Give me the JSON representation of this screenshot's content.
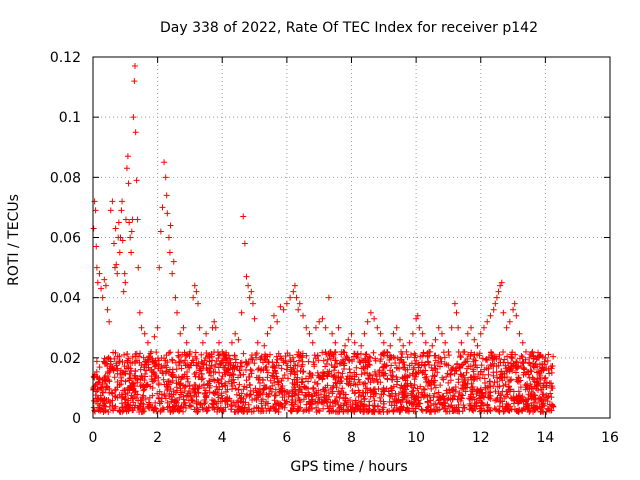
{
  "chart_data": {
    "type": "scatter",
    "title": "Day 338 of 2022, Rate Of TEC Index for receiver p142",
    "xlabel": "GPS time / hours",
    "ylabel": "ROTI / TECUs",
    "xlim": [
      0,
      16
    ],
    "ylim": [
      0,
      0.12
    ],
    "x_ticks": [
      0,
      2,
      4,
      6,
      8,
      10,
      12,
      14,
      16
    ],
    "x_tick_labels": [
      "0",
      "2",
      "4",
      "6",
      "8",
      "10",
      "12",
      "14",
      "16"
    ],
    "y_ticks": [
      0,
      0.02,
      0.04,
      0.06,
      0.08,
      0.1,
      0.12
    ],
    "y_tick_labels": [
      "0",
      "0.02",
      "0.04",
      "0.06",
      "0.08",
      "0.1",
      "0.12"
    ],
    "grid": true,
    "marker": "plus",
    "color": "#ff0000",
    "series": [
      {
        "name": "ROTI",
        "points": [
          [
            0.02,
            0.063
          ],
          [
            0.05,
            0.072
          ],
          [
            0.08,
            0.069
          ],
          [
            0.1,
            0.057
          ],
          [
            0.12,
            0.05
          ],
          [
            0.15,
            0.045
          ],
          [
            0.2,
            0.048
          ],
          [
            0.25,
            0.043
          ],
          [
            0.3,
            0.04
          ],
          [
            0.35,
            0.046
          ],
          [
            0.4,
            0.044
          ],
          [
            0.45,
            0.036
          ],
          [
            0.5,
            0.032
          ],
          [
            0.55,
            0.069
          ],
          [
            0.6,
            0.072
          ],
          [
            0.65,
            0.058
          ],
          [
            0.68,
            0.05
          ],
          [
            0.7,
            0.063
          ],
          [
            0.72,
            0.051
          ],
          [
            0.75,
            0.048
          ],
          [
            0.78,
            0.06
          ],
          [
            0.8,
            0.065
          ],
          [
            0.83,
            0.055
          ],
          [
            0.85,
            0.06
          ],
          [
            0.88,
            0.069
          ],
          [
            0.9,
            0.072
          ],
          [
            0.92,
            0.059
          ],
          [
            0.95,
            0.042
          ],
          [
            0.98,
            0.048
          ],
          [
            1.0,
            0.045
          ],
          [
            1.02,
            0.066
          ],
          [
            1.05,
            0.083
          ],
          [
            1.08,
            0.087
          ],
          [
            1.1,
            0.078
          ],
          [
            1.12,
            0.065
          ],
          [
            1.15,
            0.06
          ],
          [
            1.18,
            0.055
          ],
          [
            1.2,
            0.062
          ],
          [
            1.22,
            0.066
          ],
          [
            1.25,
            0.1
          ],
          [
            1.28,
            0.112
          ],
          [
            1.3,
            0.117
          ],
          [
            1.32,
            0.095
          ],
          [
            1.35,
            0.079
          ],
          [
            1.38,
            0.066
          ],
          [
            1.4,
            0.05
          ],
          [
            1.45,
            0.035
          ],
          [
            1.5,
            0.03
          ],
          [
            1.6,
            0.028
          ],
          [
            1.7,
            0.025
          ],
          [
            1.8,
            0.022
          ],
          [
            1.9,
            0.027
          ],
          [
            2.0,
            0.03
          ],
          [
            2.05,
            0.05
          ],
          [
            2.1,
            0.062
          ],
          [
            2.15,
            0.07
          ],
          [
            2.2,
            0.085
          ],
          [
            2.25,
            0.08
          ],
          [
            2.28,
            0.074
          ],
          [
            2.3,
            0.068
          ],
          [
            2.35,
            0.06
          ],
          [
            2.38,
            0.055
          ],
          [
            2.4,
            0.064
          ],
          [
            2.45,
            0.048
          ],
          [
            2.5,
            0.052
          ],
          [
            2.55,
            0.04
          ],
          [
            2.6,
            0.035
          ],
          [
            2.7,
            0.028
          ],
          [
            2.8,
            0.03
          ],
          [
            2.9,
            0.025
          ],
          [
            3.0,
            0.022
          ],
          [
            3.1,
            0.04
          ],
          [
            3.15,
            0.044
          ],
          [
            3.2,
            0.042
          ],
          [
            3.25,
            0.038
          ],
          [
            3.3,
            0.03
          ],
          [
            3.4,
            0.025
          ],
          [
            3.5,
            0.028
          ],
          [
            3.6,
            0.02
          ],
          [
            3.7,
            0.03
          ],
          [
            3.75,
            0.032
          ],
          [
            3.8,
            0.03
          ],
          [
            3.9,
            0.025
          ],
          [
            4.0,
            0.022
          ],
          [
            4.1,
            0.02
          ],
          [
            4.2,
            0.018
          ],
          [
            4.3,
            0.025
          ],
          [
            4.4,
            0.028
          ],
          [
            4.5,
            0.026
          ],
          [
            4.6,
            0.035
          ],
          [
            4.65,
            0.067
          ],
          [
            4.7,
            0.058
          ],
          [
            4.75,
            0.047
          ],
          [
            4.8,
            0.044
          ],
          [
            4.85,
            0.04
          ],
          [
            4.9,
            0.042
          ],
          [
            4.95,
            0.038
          ],
          [
            5.0,
            0.033
          ],
          [
            5.1,
            0.025
          ],
          [
            5.2,
            0.02
          ],
          [
            5.3,
            0.024
          ],
          [
            5.4,
            0.028
          ],
          [
            5.5,
            0.03
          ],
          [
            5.6,
            0.034
          ],
          [
            5.7,
            0.032
          ],
          [
            5.8,
            0.037
          ],
          [
            5.9,
            0.036
          ],
          [
            6.0,
            0.038
          ],
          [
            6.1,
            0.04
          ],
          [
            6.2,
            0.042
          ],
          [
            6.25,
            0.044
          ],
          [
            6.3,
            0.04
          ],
          [
            6.35,
            0.036
          ],
          [
            6.4,
            0.038
          ],
          [
            6.5,
            0.034
          ],
          [
            6.6,
            0.03
          ],
          [
            6.7,
            0.028
          ],
          [
            6.8,
            0.025
          ],
          [
            6.9,
            0.03
          ],
          [
            7.0,
            0.032
          ],
          [
            7.1,
            0.033
          ],
          [
            7.2,
            0.03
          ],
          [
            7.3,
            0.04
          ],
          [
            7.4,
            0.028
          ],
          [
            7.5,
            0.025
          ],
          [
            7.6,
            0.03
          ],
          [
            7.7,
            0.022
          ],
          [
            7.8,
            0.024
          ],
          [
            7.9,
            0.026
          ],
          [
            8.0,
            0.028
          ],
          [
            8.1,
            0.025
          ],
          [
            8.2,
            0.02
          ],
          [
            8.3,
            0.024
          ],
          [
            8.4,
            0.028
          ],
          [
            8.5,
            0.032
          ],
          [
            8.6,
            0.035
          ],
          [
            8.7,
            0.033
          ],
          [
            8.8,
            0.03
          ],
          [
            8.9,
            0.028
          ],
          [
            9.0,
            0.025
          ],
          [
            9.1,
            0.022
          ],
          [
            9.2,
            0.024
          ],
          [
            9.3,
            0.028
          ],
          [
            9.4,
            0.03
          ],
          [
            9.5,
            0.026
          ],
          [
            9.6,
            0.024
          ],
          [
            9.7,
            0.022
          ],
          [
            9.8,
            0.025
          ],
          [
            9.9,
            0.028
          ],
          [
            10.0,
            0.033
          ],
          [
            10.05,
            0.034
          ],
          [
            10.1,
            0.03
          ],
          [
            10.2,
            0.028
          ],
          [
            10.3,
            0.025
          ],
          [
            10.4,
            0.022
          ],
          [
            10.5,
            0.024
          ],
          [
            10.6,
            0.026
          ],
          [
            10.7,
            0.03
          ],
          [
            10.8,
            0.028
          ],
          [
            10.9,
            0.025
          ],
          [
            11.0,
            0.022
          ],
          [
            11.1,
            0.03
          ],
          [
            11.2,
            0.038
          ],
          [
            11.25,
            0.035
          ],
          [
            11.3,
            0.03
          ],
          [
            11.4,
            0.025
          ],
          [
            11.5,
            0.022
          ],
          [
            11.6,
            0.028
          ],
          [
            11.7,
            0.03
          ],
          [
            11.8,
            0.026
          ],
          [
            11.9,
            0.024
          ],
          [
            12.0,
            0.028
          ],
          [
            12.1,
            0.03
          ],
          [
            12.2,
            0.032
          ],
          [
            12.3,
            0.034
          ],
          [
            12.4,
            0.036
          ],
          [
            12.45,
            0.038
          ],
          [
            12.5,
            0.04
          ],
          [
            12.55,
            0.042
          ],
          [
            12.6,
            0.044
          ],
          [
            12.65,
            0.045
          ],
          [
            12.7,
            0.035
          ],
          [
            12.8,
            0.03
          ],
          [
            12.9,
            0.032
          ],
          [
            13.0,
            0.036
          ],
          [
            13.05,
            0.038
          ],
          [
            13.1,
            0.034
          ],
          [
            13.2,
            0.028
          ],
          [
            13.3,
            0.025
          ],
          [
            13.4,
            0.022
          ],
          [
            13.5,
            0.02
          ],
          [
            13.6,
            0.022
          ],
          [
            13.7,
            0.018
          ],
          [
            13.8,
            0.02
          ],
          [
            13.9,
            0.018
          ],
          [
            14.0,
            0.02
          ],
          [
            14.1,
            0.016
          ],
          [
            14.2,
            0.015
          ]
        ],
        "density_band": {
          "x_range": [
            0,
            14.25
          ],
          "y_range": [
            0.002,
            0.022
          ],
          "count": 2400
        }
      }
    ]
  }
}
